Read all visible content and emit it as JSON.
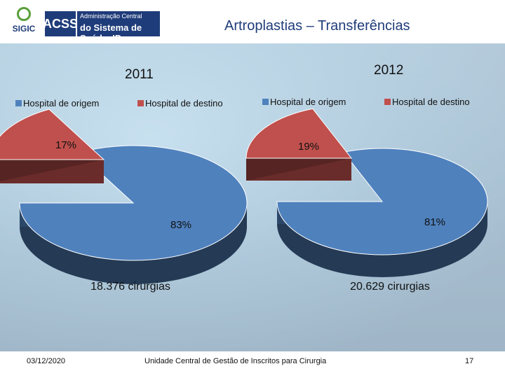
{
  "header": {
    "sigic_logo_text": "SIGIC",
    "acss_logo_text": "ACSS",
    "acss_line1": "Administração Central",
    "acss_line2": "do Sistema de Saúde, IP"
  },
  "title": "Artroplastias – Transferências",
  "chart_data": [
    {
      "type": "pie",
      "title": "2011",
      "categories": [
        "Hospital de origem",
        "Hospital de destino"
      ],
      "values": [
        83,
        17
      ],
      "value_labels": [
        "83%",
        "17%"
      ],
      "colors": [
        "#4f81bd",
        "#c0504d"
      ],
      "caption": "18.376 cirurgias",
      "legend": "top"
    },
    {
      "type": "pie",
      "title": "2012",
      "categories": [
        "Hospital de origem",
        "Hospital de destino"
      ],
      "values": [
        81,
        19
      ],
      "value_labels": [
        "81%",
        "19%"
      ],
      "colors": [
        "#4f81bd",
        "#c0504d"
      ],
      "caption": "20.629 cirurgias",
      "legend": "top"
    }
  ],
  "footer": {
    "date": "03/12/2020",
    "unit": "Unidade Central de Gestão de Inscritos para Cirurgia",
    "page": "17"
  }
}
